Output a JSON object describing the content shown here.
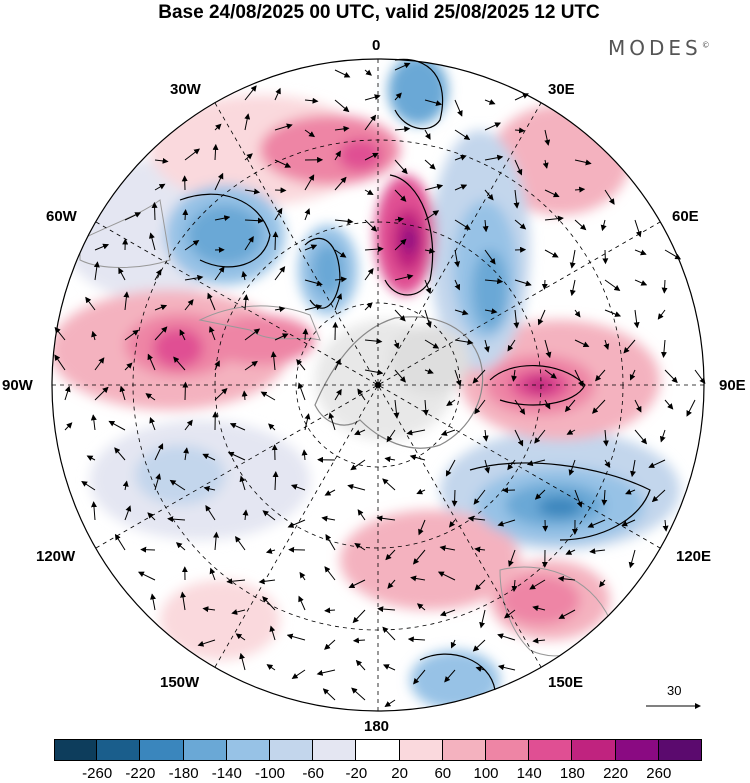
{
  "title": "Base 24/08/2025 00 UTC, valid 25/08/2025 12 UTC",
  "brand": "MODES",
  "brand_mark": "©",
  "map": {
    "projection": "south-polar-stereographic",
    "longitude_labels": {
      "top": "0",
      "bottom": "180",
      "left": "90W",
      "right": "90E",
      "n30w": "30W",
      "n30e": "30E",
      "n60w": "60W",
      "n60e": "60E",
      "n120w": "120W",
      "n120e": "120E",
      "n150w": "150W",
      "n150e": "150E"
    },
    "vector_scale_label": "30"
  },
  "colorbar": {
    "colors": [
      "#0d3d5c",
      "#1a5e8c",
      "#3a86bd",
      "#6aa8d6",
      "#97c2e6",
      "#c3d6ec",
      "#e4e6f2",
      "#ffffff",
      "#fad9dd",
      "#f4b2bf",
      "#ee85a5",
      "#e04f93",
      "#c0237f",
      "#8a0a82",
      "#5b0a6e"
    ],
    "ticks": [
      "-260",
      "-220",
      "-180",
      "-140",
      "-100",
      "-60",
      "-20",
      "20",
      "60",
      "100",
      "140",
      "180",
      "220",
      "260"
    ]
  }
}
